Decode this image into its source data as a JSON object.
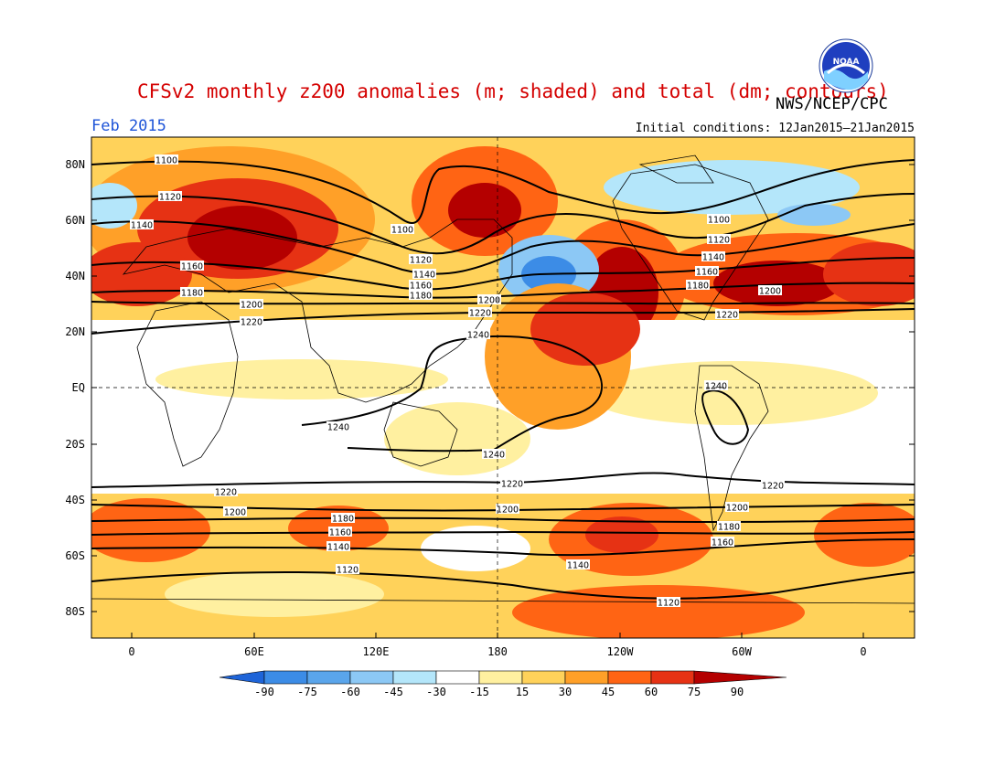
{
  "title": "CFSv2 monthly z200 anomalies (m; shaded) and total (dm; contours)",
  "agency": "NWS/NCEP/CPC",
  "logo_text": "NOAA",
  "period": "Feb 2015",
  "initial_conditions": "Initial conditions: 12Jan2015–21Jan2015",
  "lat_labels": [
    "80N",
    "60N",
    "40N",
    "20N",
    "EQ",
    "20S",
    "40S",
    "60S",
    "80S"
  ],
  "lon_labels": [
    "0",
    "60E",
    "120E",
    "180",
    "120W",
    "60W",
    "0"
  ],
  "colorbar": {
    "labels": [
      "-90",
      "-75",
      "-60",
      "-45",
      "-30",
      "-15",
      "15",
      "30",
      "45",
      "60",
      "75",
      "90"
    ],
    "colors": [
      "#1e64d8",
      "#3c8ce6",
      "#5aa5eb",
      "#8cc8f5",
      "#b4e6fa",
      "#ffffff",
      "#fff0a0",
      "#ffd25a",
      "#ffa028",
      "#ff6414",
      "#e63214",
      "#b40000"
    ]
  },
  "contour_labels": [
    "1100",
    "1120",
    "1140",
    "1160",
    "1180",
    "1200",
    "1220",
    "1240"
  ]
}
